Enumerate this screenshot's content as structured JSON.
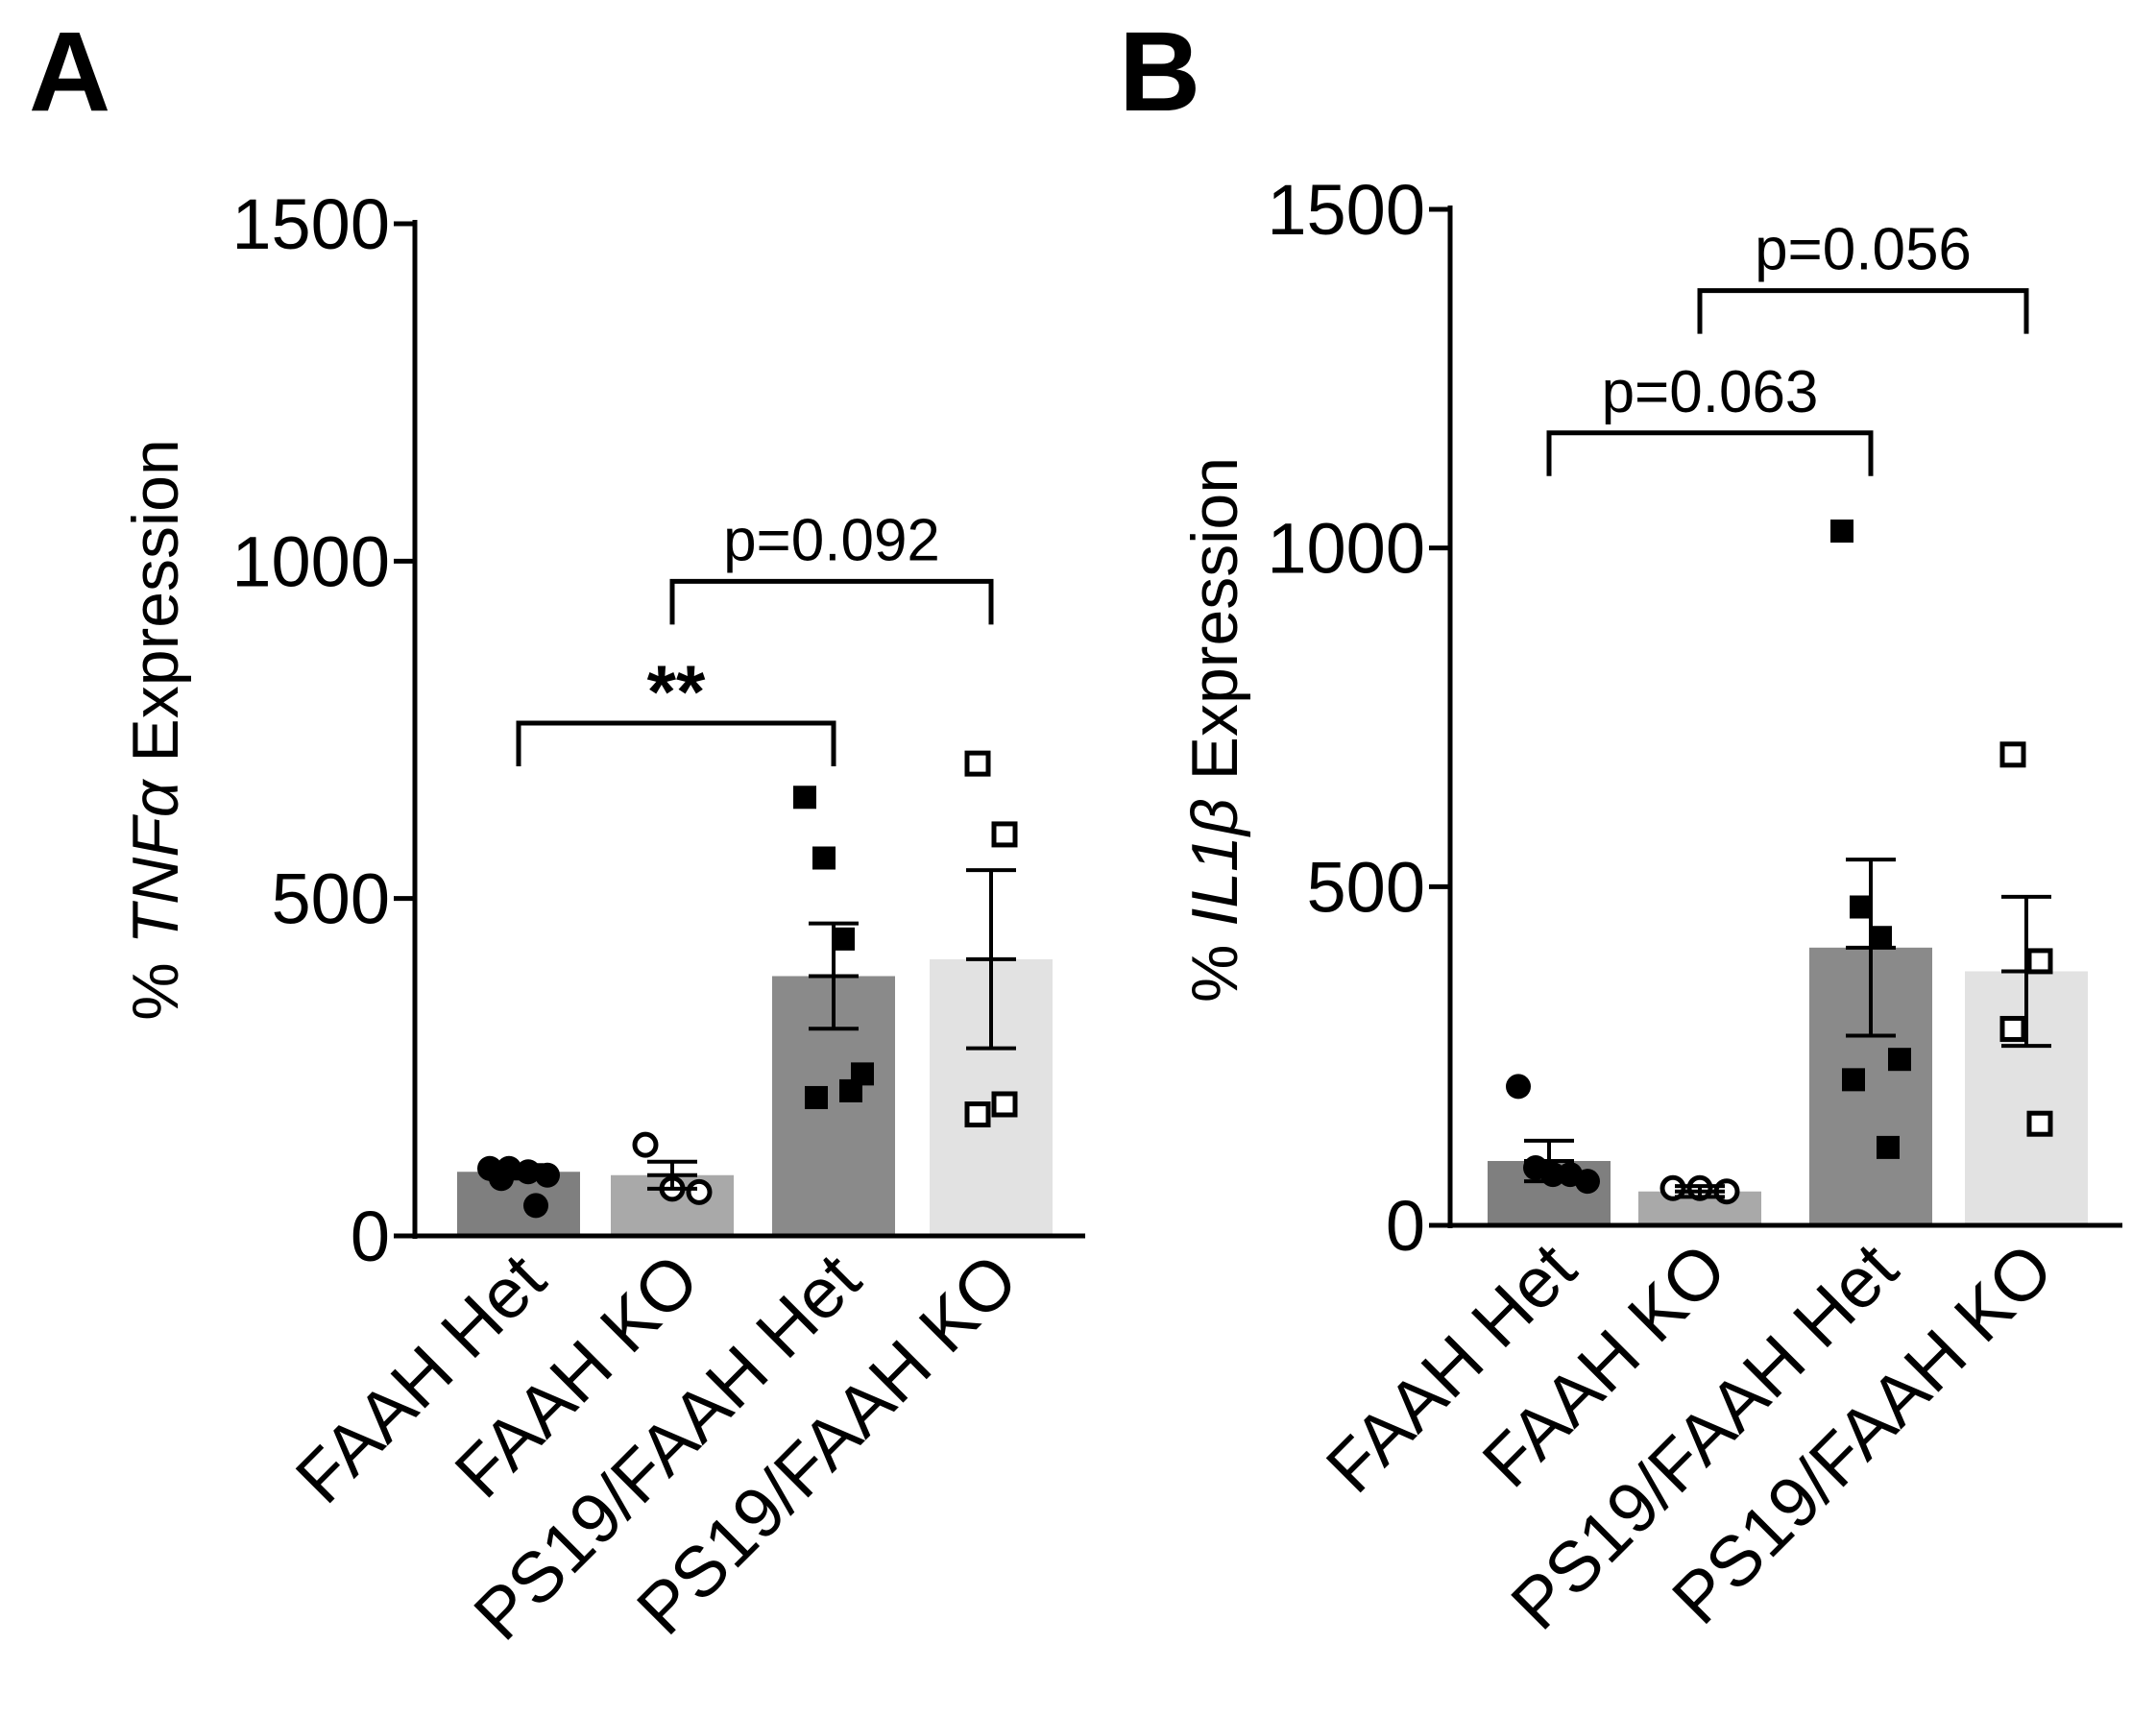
{
  "chart_data": [
    {
      "type": "bar",
      "panel_label": "A",
      "ylabel_prefix": "% ",
      "ylabel_gene": "TNFα",
      "ylabel_suffix": " Expression",
      "ylim": [
        0,
        1500
      ],
      "yticks": [
        0,
        500,
        1000,
        1500
      ],
      "categories": [
        "FAAH Het",
        "FAAH KO",
        "PS19/FAAH Het",
        "PS19/FAAH KO"
      ],
      "values": [
        95,
        90,
        385,
        410
      ],
      "sem": [
        10,
        20,
        78,
        132
      ],
      "bar_colors": [
        "#7f7f7f",
        "#a9a9a9",
        "#8a8a8a",
        "#e2e2e2"
      ],
      "marker": [
        "dot",
        "circle",
        "square",
        "open-square"
      ],
      "points": [
        [
          100,
          100,
          95,
          90,
          85,
          45
        ],
        [
          135,
          70,
          65
        ],
        [
          650,
          560,
          440,
          240,
          205,
          215
        ],
        [
          700,
          595,
          180,
          195
        ]
      ],
      "comparisons": [
        {
          "from": 0,
          "to": 2,
          "label": "**",
          "y": 760
        },
        {
          "from": 1,
          "to": 3,
          "label": "p=0.092",
          "y": 970
        }
      ]
    },
    {
      "type": "bar",
      "panel_label": "B",
      "ylabel_prefix": "% ",
      "ylabel_gene": "IL1β",
      "ylabel_suffix": " Expression",
      "ylim": [
        0,
        1500
      ],
      "yticks": [
        0,
        500,
        1000,
        1500
      ],
      "categories": [
        "FAAH Het",
        "FAAH KO",
        "PS19/FAAH Het",
        "PS19/FAAH KO"
      ],
      "values": [
        95,
        50,
        410,
        375
      ],
      "sem": [
        30,
        8,
        130,
        110
      ],
      "bar_colors": [
        "#7f7f7f",
        "#a9a9a9",
        "#8a8a8a",
        "#e2e2e2"
      ],
      "marker": [
        "dot",
        "circle",
        "square",
        "open-square"
      ],
      "points": [
        [
          205,
          85,
          75,
          75,
          65
        ],
        [
          55,
          55,
          50
        ],
        [
          1025,
          470,
          425,
          245,
          215,
          115
        ],
        [
          695,
          390,
          290,
          150
        ]
      ],
      "comparisons": [
        {
          "from": 0,
          "to": 2,
          "label": "p=0.063",
          "y": 1170
        },
        {
          "from": 1,
          "to": 3,
          "label": "p=0.056",
          "y": 1380
        }
      ]
    }
  ]
}
